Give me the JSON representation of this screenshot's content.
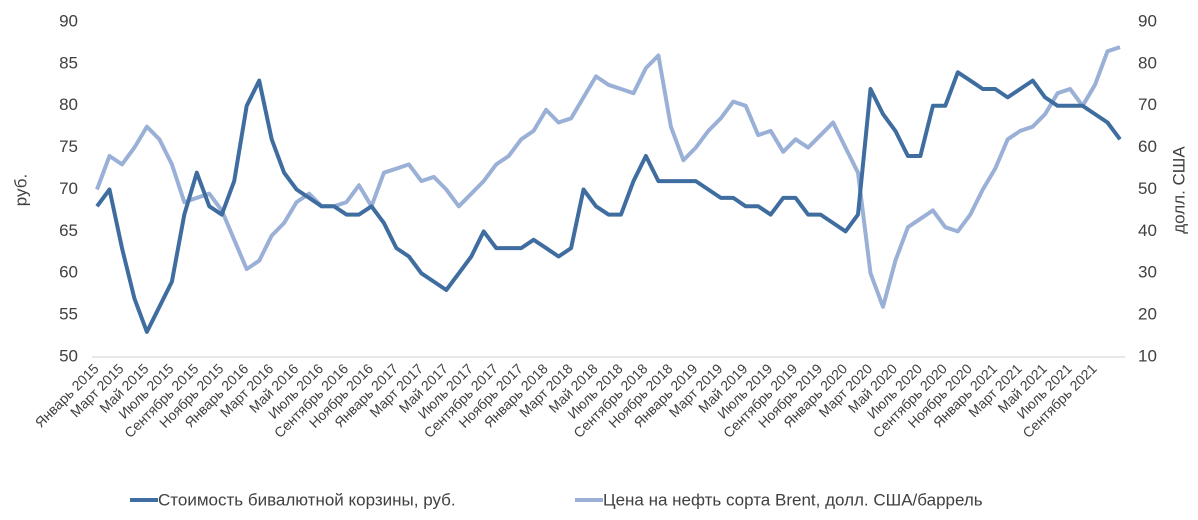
{
  "chart_data": {
    "type": "line",
    "categories": [
      "Январь 2015",
      null,
      "Март 2015",
      null,
      "Май 2015",
      null,
      "Июль 2015",
      null,
      "Сентябрь 2015",
      null,
      "Ноябрь 2015",
      null,
      "Январь 2016",
      null,
      "Март 2016",
      null,
      "Май 2016",
      null,
      "Июль 2016",
      null,
      "Сентябрь 2016",
      null,
      "Ноябрь 2016",
      null,
      "Январь 2017",
      null,
      "Март 2017",
      null,
      "Май 2017",
      null,
      "Июль 2017",
      null,
      "Сентябрь 2017",
      null,
      "Ноябрь 2017",
      null,
      "Январь 2018",
      null,
      "Март 2018",
      null,
      "Май 2018",
      null,
      "Июль 2018",
      null,
      "Сентябрь 2018",
      null,
      "Ноябрь 2018",
      null,
      "Январь 2019",
      null,
      "Март 2019",
      null,
      "Май 2019",
      null,
      "Июль 2019",
      null,
      "Сентябрь 2019",
      null,
      "Ноябрь 2019",
      null,
      "Январь 2020",
      null,
      "Март 2020",
      null,
      "Май 2020",
      null,
      "Июль 2020",
      null,
      "Сентябрь 2020",
      null,
      "Ноябрь 2020",
      null,
      "Январь 2021",
      null,
      "Март 2021",
      null,
      "Май 2021",
      null,
      "Июль 2021",
      null,
      "Сентябрь 2021",
      null,
      null
    ],
    "ylabel": "руб.",
    "y2label": "долл. США",
    "ylim": [
      50,
      90
    ],
    "yticks": [
      50,
      55,
      60,
      65,
      70,
      75,
      80,
      85,
      90
    ],
    "y2lim": [
      10,
      90
    ],
    "y2ticks": [
      10,
      20,
      30,
      40,
      50,
      60,
      70,
      80,
      90
    ],
    "series": [
      {
        "name": "Стоимость бивалютной корзины, руб.",
        "color": "#3f6d9f",
        "values": [
          68,
          70,
          63,
          57,
          53,
          56,
          59,
          67,
          72,
          68,
          67,
          71,
          80,
          83,
          76,
          72,
          70,
          69,
          68,
          68,
          67,
          67,
          68,
          66,
          63,
          62,
          60,
          59,
          58,
          60,
          62,
          65,
          63,
          63,
          63,
          64,
          63,
          62,
          63,
          70,
          68,
          67,
          67,
          71,
          74,
          71,
          71,
          71,
          71,
          70,
          69,
          69,
          68,
          68,
          67,
          69,
          69,
          67,
          67,
          66,
          65,
          67,
          82,
          79,
          77,
          74,
          74,
          80,
          80,
          84,
          83,
          82,
          82,
          81,
          82,
          83,
          81,
          80,
          80,
          80,
          79,
          78,
          76
        ]
      },
      {
        "name": "Цена на нефть сорта Brent, долл. США/баррель",
        "color": "#9bb0d6",
        "axis": "y2",
        "values": [
          50,
          58,
          56,
          60,
          65,
          62,
          56,
          47,
          48,
          49,
          45,
          38,
          31,
          33,
          39,
          42,
          47,
          49,
          46,
          46,
          47,
          51,
          46,
          54,
          55,
          56,
          52,
          53,
          50,
          46,
          49,
          52,
          56,
          58,
          62,
          64,
          69,
          66,
          67,
          72,
          77,
          75,
          74,
          73,
          79,
          82,
          65,
          57,
          60,
          64,
          67,
          71,
          70,
          63,
          64,
          59,
          62,
          60,
          63,
          66,
          60,
          54,
          30,
          22,
          33,
          41,
          43,
          45,
          41,
          40,
          44,
          50,
          55,
          62,
          64,
          65,
          68,
          73,
          74,
          70,
          75,
          83,
          84
        ]
      }
    ]
  }
}
